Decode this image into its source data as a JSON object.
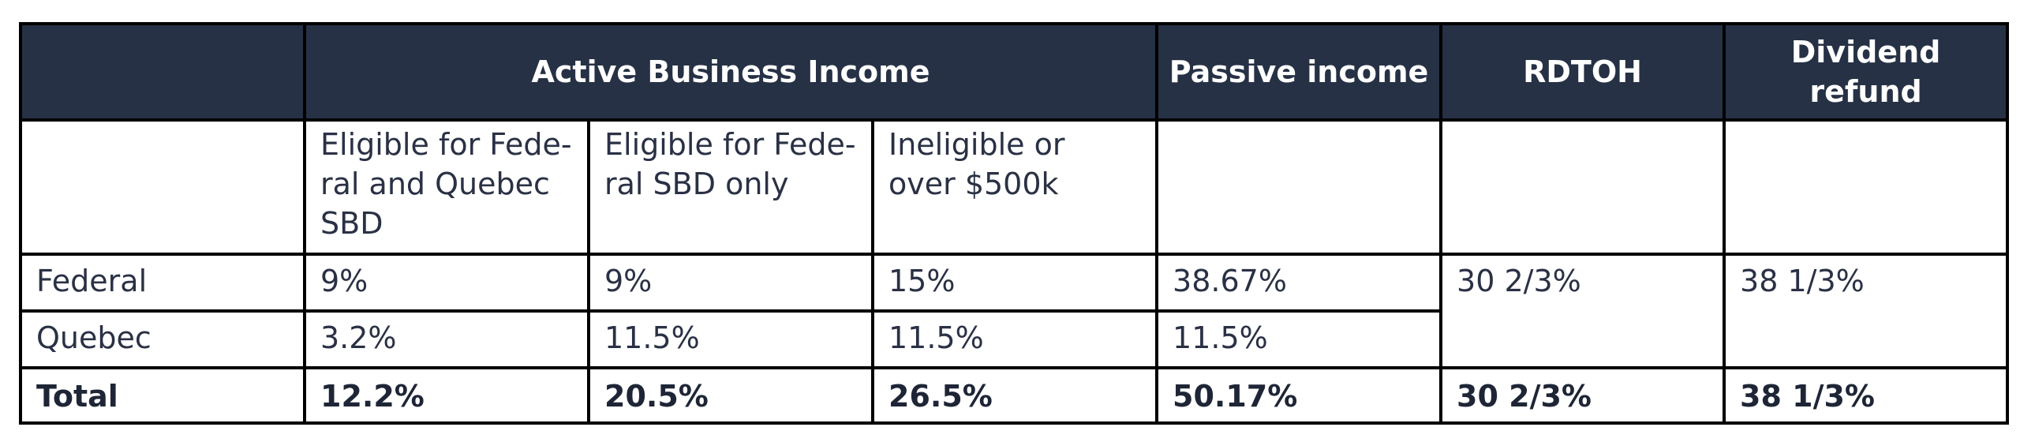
{
  "table": {
    "headers": {
      "active_business_income": "Active Business Income",
      "passive_income": "Passive income",
      "rdtoh": "RDTOH",
      "dividend_refund": "Dividend refund"
    },
    "subheaders": {
      "eligible_fed_quebec": "Eligible for Fede-ral and Quebec SBD",
      "eligible_fed_only": "Eligible for Fede-ral SBD only",
      "ineligible": "Ineligible or over $500k"
    },
    "rows": [
      {
        "label": "Federal",
        "values": [
          "9%",
          "9%",
          "15%",
          "38.67%"
        ]
      },
      {
        "label": "Quebec",
        "values": [
          "3.2%",
          "11.5%",
          "11.5%",
          "11.5%"
        ]
      },
      {
        "label": "Total",
        "values": [
          "12.2%",
          "20.5%",
          "26.5%",
          "50.17%",
          "30 2/3%",
          "38 1/3%"
        ]
      }
    ],
    "rdtoh_value": "30 2/3%",
    "dividend_refund_value": "38 1/3%"
  }
}
